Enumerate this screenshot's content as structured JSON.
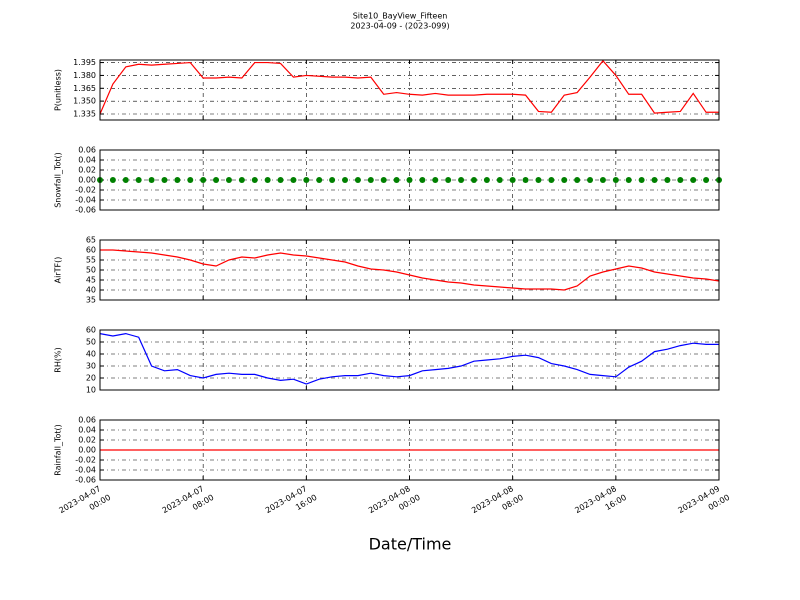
{
  "title": "Site10_BayView_Fifteen",
  "subtitle": "2023-04-09 - (2023-099)",
  "xlabel": "Date/Time",
  "x": [
    "2023-04-07 00:00",
    "2023-04-07 01:00",
    "2023-04-07 02:00",
    "2023-04-07 03:00",
    "2023-04-07 04:00",
    "2023-04-07 05:00",
    "2023-04-07 06:00",
    "2023-04-07 07:00",
    "2023-04-07 08:00",
    "2023-04-07 09:00",
    "2023-04-07 10:00",
    "2023-04-07 11:00",
    "2023-04-07 12:00",
    "2023-04-07 13:00",
    "2023-04-07 14:00",
    "2023-04-07 15:00",
    "2023-04-07 16:00",
    "2023-04-07 17:00",
    "2023-04-07 18:00",
    "2023-04-07 19:00",
    "2023-04-07 20:00",
    "2023-04-07 21:00",
    "2023-04-07 22:00",
    "2023-04-07 23:00",
    "2023-04-08 00:00",
    "2023-04-08 01:00",
    "2023-04-08 02:00",
    "2023-04-08 03:00",
    "2023-04-08 04:00",
    "2023-04-08 05:00",
    "2023-04-08 06:00",
    "2023-04-08 07:00",
    "2023-04-08 08:00",
    "2023-04-08 09:00",
    "2023-04-08 10:00",
    "2023-04-08 11:00",
    "2023-04-08 12:00",
    "2023-04-08 13:00",
    "2023-04-08 14:00",
    "2023-04-08 15:00",
    "2023-04-08 16:00",
    "2023-04-08 17:00",
    "2023-04-08 18:00",
    "2023-04-08 19:00",
    "2023-04-08 20:00",
    "2023-04-08 21:00",
    "2023-04-08 22:00",
    "2023-04-08 23:00",
    "2023-04-09 00:00"
  ],
  "xlim": [
    "2023-04-07 00:00",
    "2023-04-09 00:00"
  ],
  "xticks": [
    {
      "value": "2023-04-07 00:00",
      "label": [
        "2023-04-07",
        "00:00"
      ]
    },
    {
      "value": "2023-04-07 08:00",
      "label": [
        "2023-04-07",
        "08:00"
      ]
    },
    {
      "value": "2023-04-07 16:00",
      "label": [
        "2023-04-07",
        "16:00"
      ]
    },
    {
      "value": "2023-04-08 00:00",
      "label": [
        "2023-04-08",
        "00:00"
      ]
    },
    {
      "value": "2023-04-08 08:00",
      "label": [
        "2023-04-08",
        "08:00"
      ]
    },
    {
      "value": "2023-04-08 16:00",
      "label": [
        "2023-04-08",
        "16:00"
      ]
    },
    {
      "value": "2023-04-09 00:00",
      "label": [
        "2023-04-09",
        "00:00"
      ]
    }
  ],
  "chart_data": [
    {
      "type": "line",
      "ylabel": "P(unitless)",
      "color": "#ff0000",
      "grid": true,
      "ylim": [
        1.328,
        1.398
      ],
      "yticks": [
        1.335,
        {
          "value": 1.35,
          "label": "1.350"
        },
        1.365,
        {
          "value": 1.38,
          "label": "1.380"
        },
        1.395
      ],
      "values": [
        1.335,
        1.37,
        1.39,
        1.393,
        1.392,
        1.393,
        1.394,
        1.395,
        1.377,
        1.377,
        1.378,
        1.377,
        1.395,
        1.395,
        1.394,
        1.378,
        1.38,
        1.379,
        1.378,
        1.378,
        1.377,
        1.378,
        1.358,
        1.36,
        1.358,
        1.357,
        1.359,
        1.357,
        1.357,
        1.357,
        1.358,
        1.358,
        1.358,
        1.357,
        1.338,
        1.337,
        1.357,
        1.36,
        1.378,
        1.397,
        1.38,
        1.358,
        1.358,
        1.336,
        1.337,
        1.338,
        1.359,
        1.337,
        1.337
      ]
    },
    {
      "type": "scatter",
      "ylabel": "Snowfall_Tot()",
      "color": "#008000",
      "grid": true,
      "ylim": [
        -0.06,
        0.06
      ],
      "yticks": [
        -0.06,
        -0.04,
        -0.02,
        {
          "value": 0,
          "label": "0.00"
        },
        0.02,
        0.04,
        0.06
      ],
      "values": [
        0,
        0,
        0,
        0,
        0,
        0,
        0,
        0,
        0,
        0,
        0,
        0,
        0,
        0,
        0,
        0,
        0,
        0,
        0,
        0,
        0,
        0,
        0,
        0,
        0,
        0,
        0,
        0,
        0,
        0,
        0,
        0,
        0,
        0,
        0,
        0,
        0,
        0,
        0,
        0,
        0,
        0,
        0,
        0,
        0,
        0,
        0,
        0,
        0
      ]
    },
    {
      "type": "line",
      "ylabel": "AirTF()",
      "color": "#ff0000",
      "grid": true,
      "ylim": [
        35,
        65
      ],
      "yticks": [
        35,
        40,
        45,
        50,
        55,
        60,
        65
      ],
      "values": [
        60,
        60,
        59.5,
        59,
        58.5,
        57.5,
        56.5,
        55,
        53,
        52,
        55,
        56.5,
        56,
        57.5,
        58.5,
        57.5,
        57,
        56,
        55,
        54,
        52,
        50.5,
        50,
        49,
        47.5,
        46,
        45,
        44,
        43.5,
        42.5,
        42,
        41.5,
        41,
        40.5,
        40.5,
        40.5,
        40,
        42,
        47,
        49,
        50.5,
        52,
        51,
        49,
        48,
        47,
        46,
        45.5,
        44.5
      ]
    },
    {
      "type": "line",
      "ylabel": "RH(%)",
      "color": "#0000ff",
      "grid": true,
      "ylim": [
        10,
        60
      ],
      "yticks": [
        10,
        20,
        30,
        40,
        50,
        60
      ],
      "values": [
        57,
        55,
        57,
        54,
        30,
        26,
        27,
        22,
        20,
        23,
        24,
        23,
        23,
        20,
        18,
        19,
        15,
        19,
        21,
        22,
        22,
        24,
        22,
        21,
        22,
        26,
        27,
        28,
        30,
        34,
        35,
        36,
        38,
        39,
        37,
        32,
        30,
        27,
        23,
        22,
        21,
        29,
        34,
        42,
        44,
        47,
        49,
        48,
        48
      ]
    },
    {
      "type": "line",
      "ylabel": "Rainfall_Tot()",
      "color": "#ff0000",
      "grid": true,
      "ylim": [
        -0.06,
        0.06
      ],
      "yticks": [
        -0.06,
        -0.04,
        -0.02,
        {
          "value": 0,
          "label": "0.00"
        },
        0.02,
        0.04,
        0.06
      ],
      "values": [
        0,
        0,
        0,
        0,
        0,
        0,
        0,
        0,
        0,
        0,
        0,
        0,
        0,
        0,
        0,
        0,
        0,
        0,
        0,
        0,
        0,
        0,
        0,
        0,
        0,
        0,
        0,
        0,
        0,
        0,
        0,
        0,
        0,
        0,
        0,
        0,
        0,
        0,
        0,
        0,
        0,
        0,
        0,
        0,
        0,
        0,
        0,
        0,
        0
      ]
    }
  ]
}
